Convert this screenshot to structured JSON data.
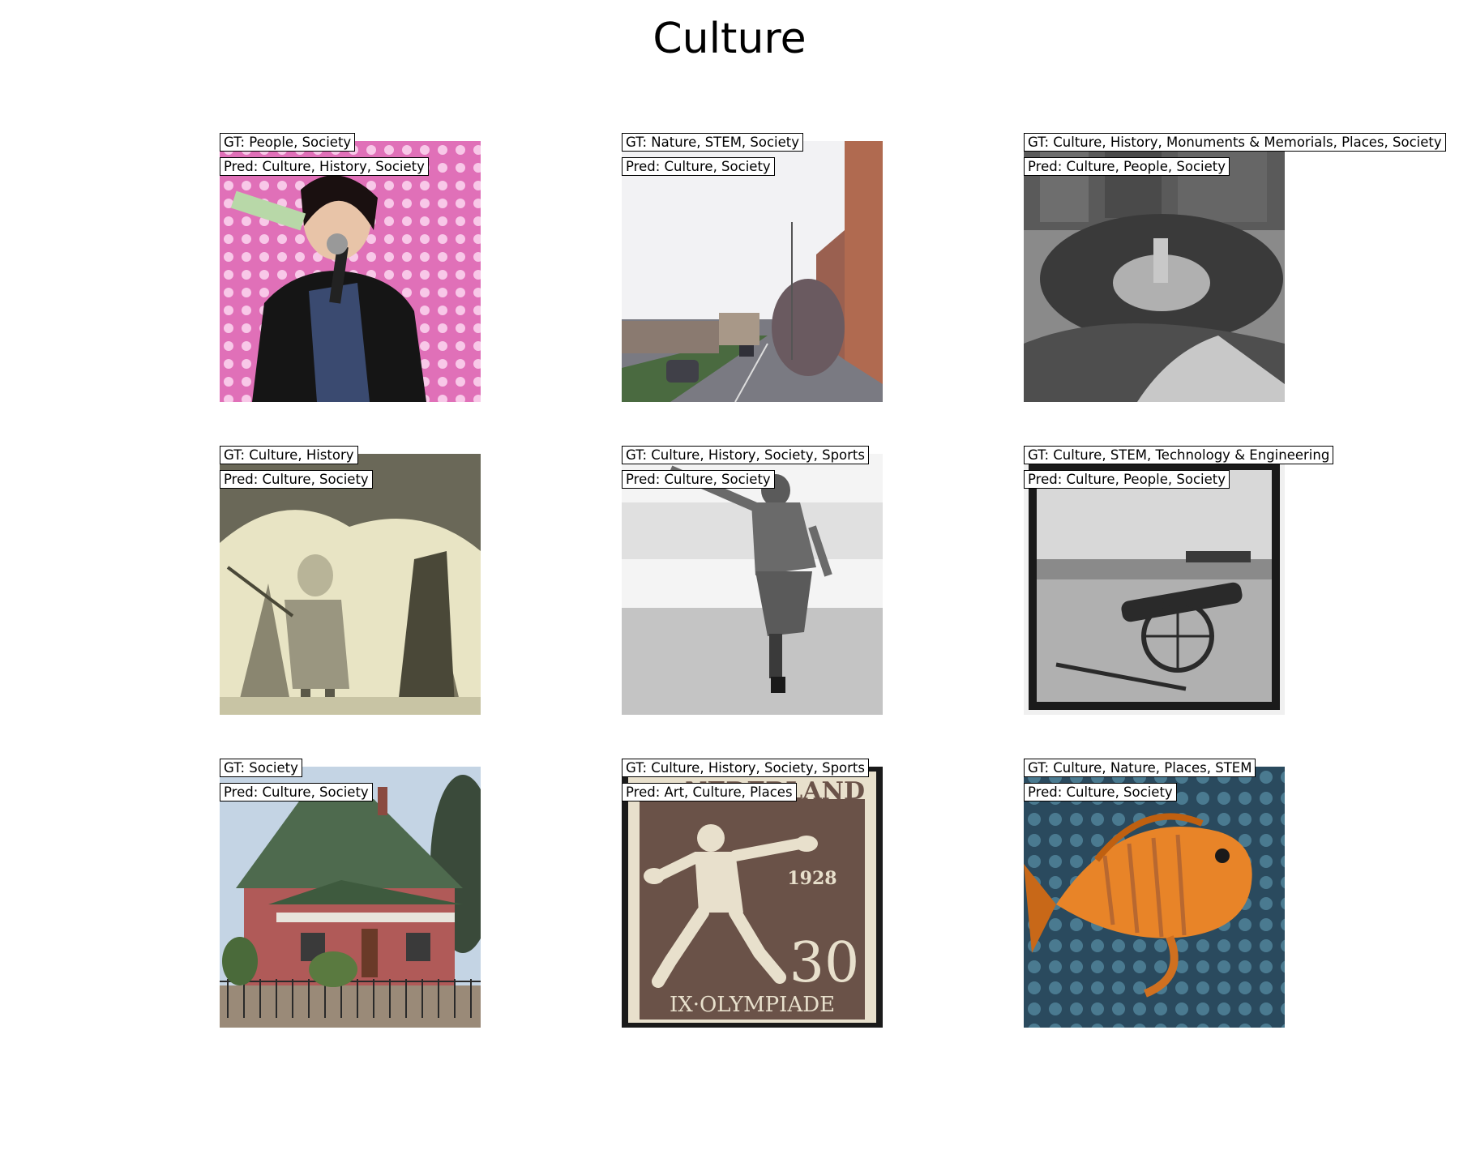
{
  "title": "Culture",
  "panels": [
    {
      "gt": "GT: People, Society",
      "pred": "Pred: Culture, History, Society",
      "subject": "woman-with-microphone"
    },
    {
      "gt": "GT: Nature, STEM, Society",
      "pred": "Pred: Culture, Society",
      "subject": "city-street"
    },
    {
      "gt": "GT: Culture, History, Monuments & Memorials, Places, Society",
      "pred": "Pred: Culture, People, Society",
      "subject": "historic-crowd-photo"
    },
    {
      "gt": "GT: Culture, History",
      "pred": "Pred: Culture, Society",
      "subject": "engraving-illustration"
    },
    {
      "gt": "GT: Culture, History, Society, Sports",
      "pred": "Pred: Culture, Society",
      "subject": "baseball-player"
    },
    {
      "gt": "GT: Culture, STEM, Technology & Engineering",
      "pred": "Pred: Culture, People, Society",
      "subject": "cannon-photo"
    },
    {
      "gt": "GT: Society",
      "pred": "Pred: Culture, Society",
      "subject": "red-brick-house"
    },
    {
      "gt": "GT: Culture, History, Society, Sports",
      "pred": "Pred: Art, Culture, Places",
      "subject": "olympic-stamp",
      "stamp_text_top": "NEDERLAND",
      "stamp_year": "1928",
      "stamp_value": "30",
      "stamp_bottom": "IX·OLYMPIADE"
    },
    {
      "gt": "GT: Culture, Nature, Places, STEM",
      "pred": "Pred: Culture, Society",
      "subject": "orange-fish"
    }
  ]
}
